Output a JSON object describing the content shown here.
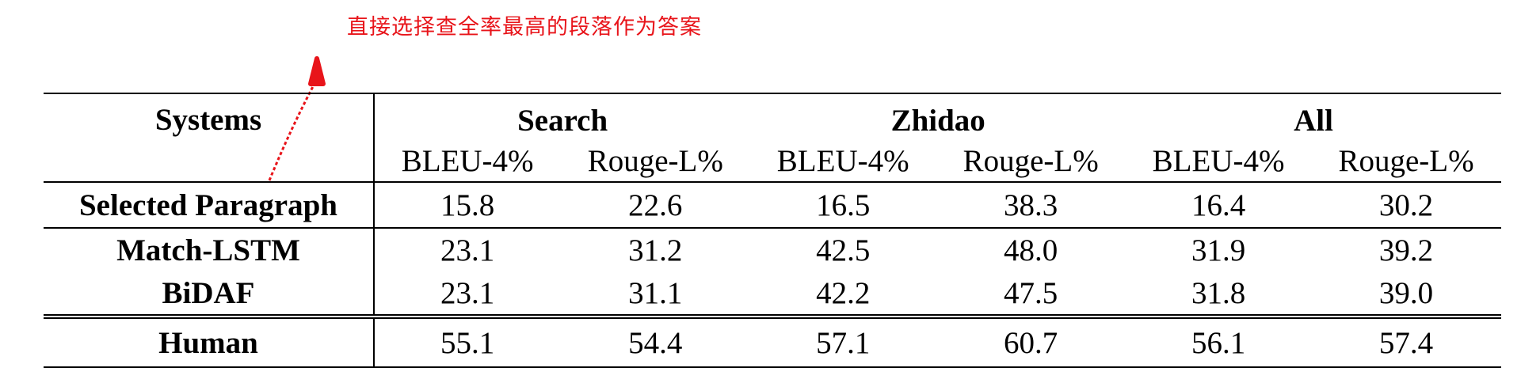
{
  "annotation": {
    "text": "直接选择查全率最高的段落作为答案",
    "color": "#e8141a"
  },
  "table": {
    "systems_header": "Systems",
    "groups": [
      "Search",
      "Zhidao",
      "All"
    ],
    "metrics": [
      "BLEU-4%",
      "Rouge-L%",
      "BLEU-4%",
      "Rouge-L%",
      "BLEU-4%",
      "Rouge-L%"
    ],
    "rows": [
      {
        "system": "Selected Paragraph",
        "values": [
          "15.8",
          "22.6",
          "16.5",
          "38.3",
          "16.4",
          "30.2"
        ]
      },
      {
        "system": "Match-LSTM",
        "values": [
          "23.1",
          "31.2",
          "42.5",
          "48.0",
          "31.9",
          "39.2"
        ]
      },
      {
        "system": "BiDAF",
        "values": [
          "23.1",
          "31.1",
          "42.2",
          "47.5",
          "31.8",
          "39.0"
        ]
      },
      {
        "system": "Human",
        "values": [
          "55.1",
          "54.4",
          "57.1",
          "60.7",
          "56.1",
          "57.4"
        ]
      }
    ]
  }
}
